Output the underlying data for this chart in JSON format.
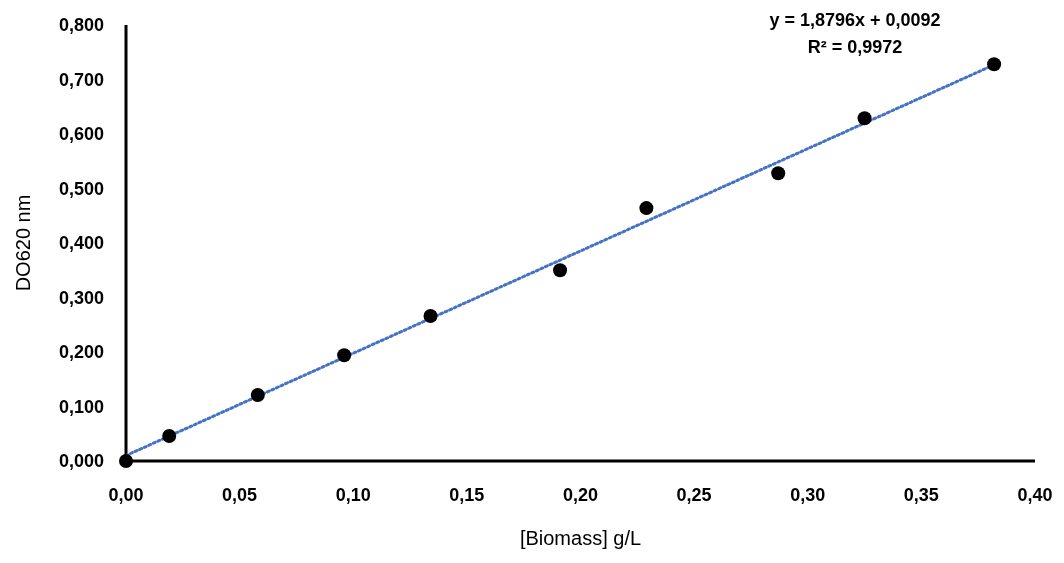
{
  "chart_data": {
    "type": "scatter",
    "xlabel": "[Biomass] g/L",
    "ylabel": "DO620 nm",
    "xlim": [
      0,
      0.4
    ],
    "ylim": [
      0,
      0.8
    ],
    "xticks": [
      {
        "value": 0,
        "label": "0,00"
      },
      {
        "value": 0.05,
        "label": "0,05"
      },
      {
        "value": 0.1,
        "label": "0,10"
      },
      {
        "value": 0.15,
        "label": "0,15"
      },
      {
        "value": 0.2,
        "label": "0,20"
      },
      {
        "value": 0.25,
        "label": "0,25"
      },
      {
        "value": 0.3,
        "label": "0,30"
      },
      {
        "value": 0.35,
        "label": "0,35"
      },
      {
        "value": 0.4,
        "label": "0,40"
      }
    ],
    "yticks": [
      {
        "value": 0,
        "label": "0,000"
      },
      {
        "value": 0.1,
        "label": "0,100"
      },
      {
        "value": 0.2,
        "label": "0,200"
      },
      {
        "value": 0.3,
        "label": "0,300"
      },
      {
        "value": 0.4,
        "label": "0,400"
      },
      {
        "value": 0.5,
        "label": "0,500"
      },
      {
        "value": 0.6,
        "label": "0,600"
      },
      {
        "value": 0.7,
        "label": "0,700"
      },
      {
        "value": 0.8,
        "label": "0,800"
      }
    ],
    "grid": false,
    "series": [
      {
        "marker": "circle",
        "color": "#000000",
        "x": [
          0,
          0.019,
          0.058,
          0.096,
          0.134,
          0.191,
          0.229,
          0.287,
          0.325,
          0.382
        ],
        "values": [
          0,
          0.046,
          0.121,
          0.194,
          0.266,
          0.35,
          0.464,
          0.528,
          0.629,
          0.728
        ]
      },
      {
        "type": "line",
        "color": "#4472c4",
        "line_style": "dotted",
        "x": [
          0,
          0.382
        ],
        "values": [
          0.01,
          0.727
        ]
      }
    ],
    "annotations": [
      "y = 1,8796x + 0,0092",
      "R² = 0,9972"
    ]
  }
}
